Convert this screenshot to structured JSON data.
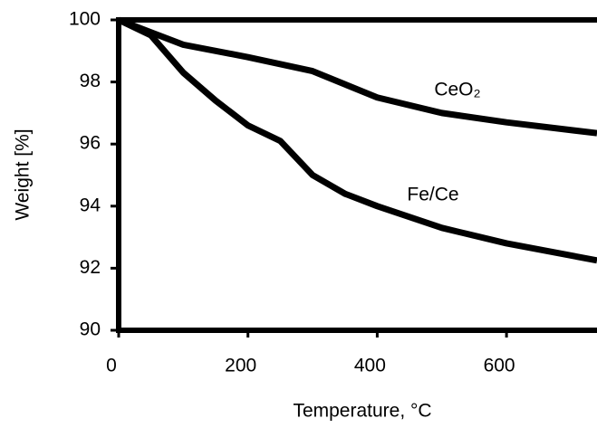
{
  "chart_data": {
    "type": "line",
    "xlabel": "Temperature, °C",
    "ylabel": "Weight [%]",
    "xlim": [
      0,
      740
    ],
    "xticks": [
      0,
      200,
      400,
      600
    ],
    "ylim": [
      90,
      100
    ],
    "yticks": [
      90,
      92,
      94,
      96,
      98,
      100
    ],
    "series": [
      {
        "name": "CeO₂",
        "color": "#000000",
        "x": [
          0,
          50,
          100,
          200,
          300,
          400,
          500,
          600,
          740
        ],
        "values": [
          100,
          99.6,
          99.2,
          98.8,
          98.35,
          97.5,
          97.0,
          96.7,
          96.35
        ]
      },
      {
        "name": "Fe/Ce",
        "color": "#000000",
        "x": [
          0,
          50,
          100,
          150,
          200,
          250,
          300,
          350,
          400,
          500,
          600,
          740
        ],
        "values": [
          100,
          99.5,
          98.3,
          97.4,
          96.6,
          96.1,
          95.0,
          94.4,
          94.0,
          93.3,
          92.8,
          92.25
        ]
      }
    ]
  }
}
